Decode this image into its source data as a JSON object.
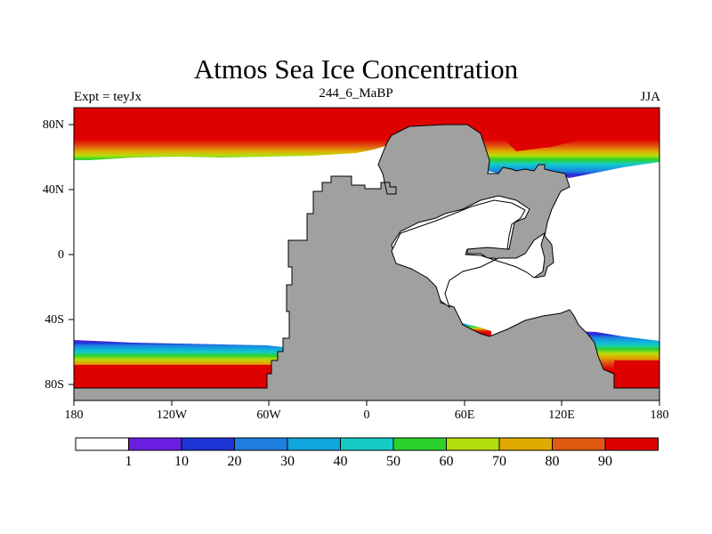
{
  "title": "Atmos Sea Ice Concentration",
  "subtitle_left": "Expt = teyJx",
  "subtitle_center": "244_6_MaBP",
  "subtitle_right": "JJA",
  "map": {
    "projection": "cylindrical-equidistant",
    "lon_range": [
      -180,
      180
    ],
    "lat_range": [
      -90,
      90
    ],
    "land_color": "#a0a0a0",
    "ocean_no_ice_color": "#ffffff",
    "x_tick_labels": [
      "180",
      "120W",
      "60W",
      "0",
      "60E",
      "120E",
      "180"
    ],
    "y_tick_labels": [
      "80N",
      "40N",
      "0",
      "40S",
      "80S"
    ]
  },
  "colorbar": {
    "labels": [
      "1",
      "10",
      "20",
      "30",
      "40",
      "50",
      "60",
      "70",
      "80",
      "90"
    ],
    "colors": [
      "#ffffff",
      "#6a1ee0",
      "#1e33d4",
      "#1f7fe0",
      "#11a6dd",
      "#14ccc4",
      "#2dd12d",
      "#b5de0d",
      "#e0aa00",
      "#e05a12",
      "#df0000"
    ]
  }
}
